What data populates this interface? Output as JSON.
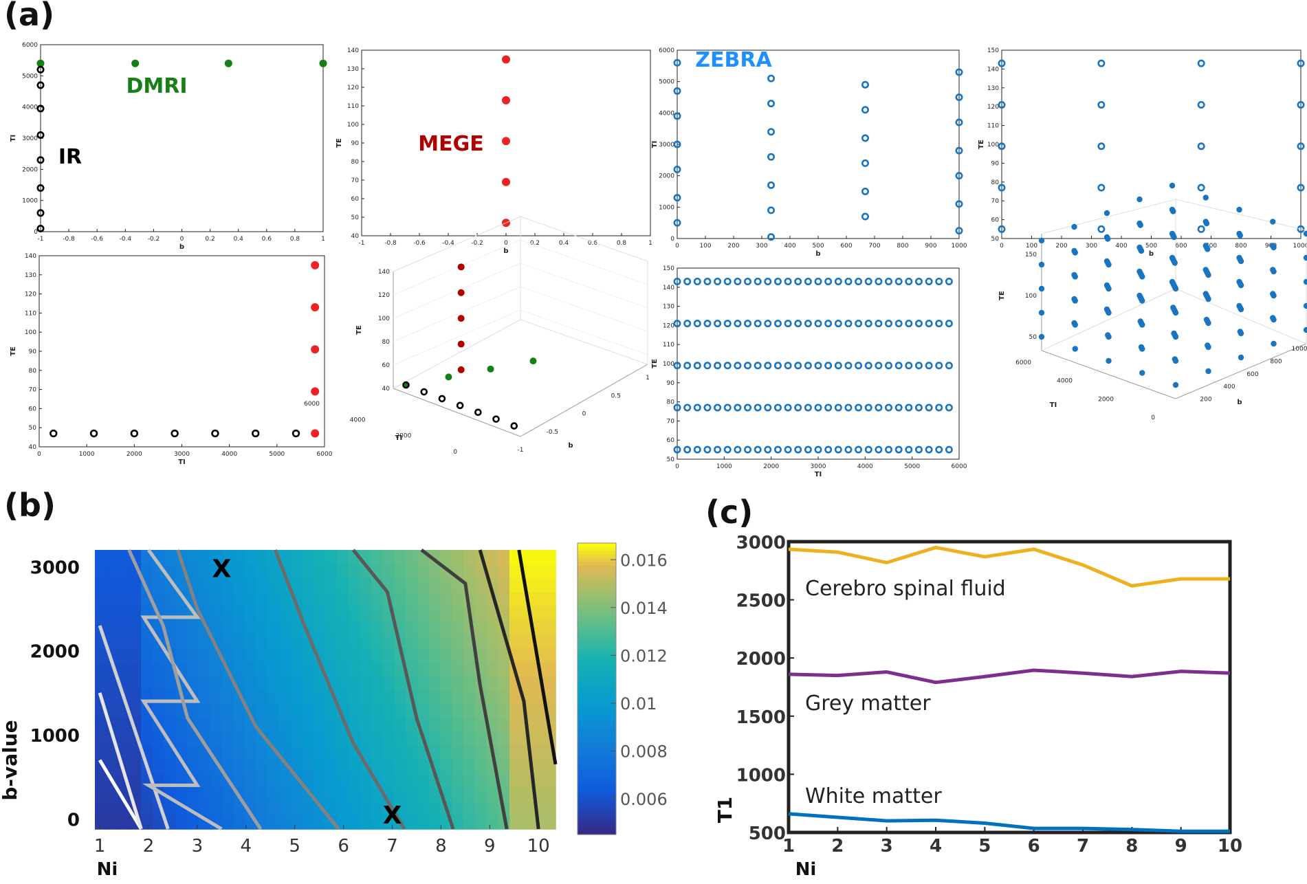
{
  "panel_labels": {
    "a": "(a)",
    "b": "(b)",
    "c": "(c)"
  },
  "colors": {
    "dmri": "#158015",
    "mege": "#ee2222",
    "mege_label": "#b00000",
    "zebra": "#1a75c0",
    "zebra_label": "#1e90ff",
    "ir": "#000000",
    "csf": "#edb120",
    "grey": "#7e2f8e",
    "white": "#0072bd"
  },
  "chart_data": [
    {
      "id": "a1",
      "type": "scatter",
      "xlabel": "b",
      "ylabel": "TI",
      "xlim": [
        -1,
        1
      ],
      "ylim": [
        0,
        6000
      ],
      "xticks": [
        "-1",
        "-0.8",
        "-0.6",
        "-0.4",
        "-0.2",
        "0",
        "0.2",
        "0.4",
        "0.6",
        "0.8",
        "1"
      ],
      "yticks": [
        "0",
        "1000",
        "2000",
        "3000",
        "4000",
        "5000",
        "6000"
      ],
      "annotations": [
        "DMRI",
        "IR"
      ],
      "series": [
        {
          "name": "DMRI",
          "marker": "filled",
          "color": "#158015",
          "points": [
            [
              -1,
              5400
            ],
            [
              -0.33,
              5400
            ],
            [
              0.33,
              5400
            ],
            [
              1,
              5400
            ]
          ]
        },
        {
          "name": "IR",
          "marker": "ring",
          "color": "#000000",
          "points": [
            [
              -1,
              100
            ],
            [
              -1,
              600
            ],
            [
              -1,
              1400
            ],
            [
              -1,
              2300
            ],
            [
              -1,
              3100
            ],
            [
              -1,
              3950
            ],
            [
              -1,
              4700
            ],
            [
              -1,
              5200
            ]
          ]
        }
      ]
    },
    {
      "id": "a2",
      "type": "scatter",
      "xlabel": "b",
      "ylabel": "TE",
      "xlim": [
        -1,
        1
      ],
      "ylim": [
        40,
        140
      ],
      "xticks": [
        "-1",
        "-0.8",
        "-0.6",
        "-0.4",
        "-0.2",
        "0",
        "0.2",
        "0.4",
        "0.6",
        "0.8",
        "1"
      ],
      "yticks": [
        "40",
        "50",
        "60",
        "70",
        "80",
        "90",
        "100",
        "110",
        "120",
        "130",
        "140"
      ],
      "annotations": [
        "MEGE"
      ],
      "series": [
        {
          "name": "MEGE",
          "marker": "filled",
          "color": "#ee2222",
          "points": [
            [
              0,
              47
            ],
            [
              0,
              69
            ],
            [
              0,
              91
            ],
            [
              0,
              113
            ],
            [
              0,
              135
            ]
          ]
        }
      ]
    },
    {
      "id": "a3",
      "type": "scatter",
      "xlabel": "b",
      "ylabel": "TI",
      "xlim": [
        0,
        1000
      ],
      "ylim": [
        0,
        6000
      ],
      "xticks": [
        "0",
        "100",
        "200",
        "300",
        "400",
        "500",
        "600",
        "700",
        "800",
        "900",
        "1000"
      ],
      "yticks": [
        "0",
        "1000",
        "2000",
        "3000",
        "4000",
        "5000",
        "6000"
      ],
      "annotations": [
        "ZEBRA"
      ],
      "series": [
        {
          "name": "ZEBRA",
          "marker": "ring",
          "color": "#1a75c0",
          "points": [
            [
              0,
              500
            ],
            [
              0,
              1300
            ],
            [
              0,
              2200
            ],
            [
              0,
              3000
            ],
            [
              0,
              3900
            ],
            [
              0,
              4700
            ],
            [
              0,
              5600
            ],
            [
              333,
              50
            ],
            [
              333,
              900
            ],
            [
              333,
              1700
            ],
            [
              333,
              2600
            ],
            [
              333,
              3400
            ],
            [
              333,
              4300
            ],
            [
              333,
              5100
            ],
            [
              667,
              700
            ],
            [
              667,
              1500
            ],
            [
              667,
              2400
            ],
            [
              667,
              3200
            ],
            [
              667,
              4100
            ],
            [
              667,
              4900
            ],
            [
              1000,
              250
            ],
            [
              1000,
              1100
            ],
            [
              1000,
              2000
            ],
            [
              1000,
              2800
            ],
            [
              1000,
              3700
            ],
            [
              1000,
              4500
            ],
            [
              1000,
              5300
            ]
          ]
        }
      ]
    },
    {
      "id": "a4",
      "type": "scatter",
      "xlabel": "b",
      "ylabel": "TE",
      "xlim": [
        0,
        1000
      ],
      "ylim": [
        50,
        150
      ],
      "xticks": [
        "0",
        "100",
        "200",
        "300",
        "400",
        "500",
        "600",
        "700",
        "800",
        "900",
        "1000"
      ],
      "yticks": [
        "50",
        "60",
        "70",
        "80",
        "90",
        "100",
        "110",
        "120",
        "130",
        "140",
        "150"
      ],
      "series": [
        {
          "marker": "ring",
          "color": "#1a75c0",
          "points": [
            [
              0,
              55
            ],
            [
              0,
              77
            ],
            [
              0,
              99
            ],
            [
              0,
              121
            ],
            [
              0,
              143
            ],
            [
              333,
              55
            ],
            [
              333,
              77
            ],
            [
              333,
              99
            ],
            [
              333,
              121
            ],
            [
              333,
              143
            ],
            [
              667,
              55
            ],
            [
              667,
              77
            ],
            [
              667,
              99
            ],
            [
              667,
              121
            ],
            [
              667,
              143
            ],
            [
              1000,
              55
            ],
            [
              1000,
              77
            ],
            [
              1000,
              99
            ],
            [
              1000,
              121
            ],
            [
              1000,
              143
            ]
          ]
        }
      ]
    },
    {
      "id": "a5",
      "type": "scatter",
      "xlabel": "TI",
      "ylabel": "TE",
      "xlim": [
        0,
        6000
      ],
      "ylim": [
        40,
        140
      ],
      "xticks": [
        "0",
        "1000",
        "2000",
        "3000",
        "4000",
        "5000",
        "6000"
      ],
      "yticks": [
        "40",
        "50",
        "60",
        "70",
        "80",
        "90",
        "100",
        "110",
        "120",
        "130",
        "140"
      ],
      "series": [
        {
          "marker": "ring",
          "color": "#000000",
          "points": [
            [
              300,
              47
            ],
            [
              1150,
              47
            ],
            [
              2000,
              47
            ],
            [
              2850,
              47
            ],
            [
              3700,
              47
            ],
            [
              4550,
              47
            ],
            [
              5400,
              47
            ]
          ]
        },
        {
          "marker": "filled",
          "color": "#ee2222",
          "points": [
            [
              5800,
              47
            ],
            [
              5800,
              69
            ],
            [
              5800,
              91
            ],
            [
              5800,
              113
            ],
            [
              5800,
              135
            ]
          ]
        }
      ]
    },
    {
      "id": "a6",
      "type": "scatter",
      "subtype": "3d",
      "xlabel": "b",
      "ylabel": "TI",
      "zlabel": "TE",
      "ticks": {
        "TE": [
          "40",
          "60",
          "80",
          "100",
          "120",
          "140"
        ],
        "TI": [
          "0",
          "2000",
          "4000",
          "6000"
        ],
        "b": [
          "-1",
          "-0.5",
          "0",
          "0.5",
          "1"
        ]
      },
      "series": [
        {
          "marker": "filled",
          "color": "#b00000",
          "points": [
            [
              0,
              5800,
              47
            ],
            [
              0,
              5800,
              69
            ],
            [
              0,
              5800,
              91
            ],
            [
              0,
              5800,
              113
            ],
            [
              0,
              5800,
              135
            ]
          ]
        },
        {
          "marker": "filled",
          "color": "#158015",
          "points": [
            [
              -1,
              5400,
              47
            ],
            [
              -0.33,
              5400,
              47
            ],
            [
              0.33,
              5400,
              47
            ],
            [
              1,
              5400,
              47
            ]
          ]
        },
        {
          "marker": "ring",
          "color": "#000000",
          "points": [
            [
              -1,
              300,
              47
            ],
            [
              -1,
              1150,
              47
            ],
            [
              -1,
              2000,
              47
            ],
            [
              -1,
              2850,
              47
            ],
            [
              -1,
              3700,
              47
            ],
            [
              -1,
              4550,
              47
            ],
            [
              -1,
              5400,
              47
            ]
          ]
        }
      ]
    },
    {
      "id": "a7",
      "type": "scatter",
      "xlabel": "TI",
      "ylabel": "TE",
      "xlim": [
        0,
        6000
      ],
      "ylim": [
        50,
        150
      ],
      "xticks": [
        "0",
        "1000",
        "2000",
        "3000",
        "4000",
        "5000",
        "6000"
      ],
      "yticks": [
        "50",
        "60",
        "70",
        "80",
        "90",
        "100",
        "110",
        "120",
        "130",
        "140",
        "150"
      ],
      "series": [
        {
          "marker": "ring",
          "color": "#1a75c0",
          "rows_te": [
            55,
            77,
            99,
            121,
            143
          ],
          "ti_start": 0,
          "ti_step": 214.3,
          "count_per_row": 28
        }
      ]
    },
    {
      "id": "a8",
      "type": "scatter",
      "subtype": "3d",
      "xlabel": "b",
      "ylabel": "TI",
      "zlabel": "TE",
      "ticks": {
        "TE": [
          "50",
          "100",
          "150"
        ],
        "TI": [
          "0",
          "2000",
          "4000",
          "6000"
        ],
        "b": [
          "200",
          "400",
          "600",
          "800",
          "1000"
        ]
      },
      "series": [
        {
          "marker": "filled",
          "color": "#1a75c0",
          "grid": [
            5,
            5,
            5
          ]
        }
      ]
    },
    {
      "id": "b",
      "type": "heatmap",
      "xlabel": "Ni",
      "ylabel": "b-value",
      "xticks": [
        "1",
        "2",
        "3",
        "4",
        "5",
        "6",
        "7",
        "8",
        "9",
        "10"
      ],
      "yticks": [
        "0",
        "1000",
        "2000",
        "3000"
      ],
      "xlim": [
        0.9,
        10.35
      ],
      "ylim": [
        -120,
        3200
      ],
      "colorbar_ticks": [
        "0.006",
        "0.008",
        "0.01",
        "0.012",
        "0.014",
        "0.016"
      ],
      "colorbar_range": [
        0.0045,
        0.0167
      ],
      "markers": [
        {
          "text": "X",
          "x": 3.5,
          "y": 2990
        },
        {
          "text": "X",
          "x": 7.0,
          "y": 60
        }
      ],
      "contours": [
        {
          "shade": "#ffffff",
          "points": [
            [
              1.85,
              -120
            ],
            [
              1.0,
              700
            ]
          ]
        },
        {
          "shade": "#e6e6e6",
          "points": [
            [
              1.85,
              -120
            ],
            [
              1.0,
              1500
            ]
          ]
        },
        {
          "shade": "#d0d0d0",
          "points": [
            [
              2.4,
              -120
            ],
            [
              1.0,
              2300
            ]
          ]
        },
        {
          "shade": "#bdbdbd",
          "points": [
            [
              3.5,
              -120
            ],
            [
              2.0,
              400
            ],
            [
              3.0,
              400
            ],
            [
              1.9,
              1400
            ],
            [
              3.0,
              1400
            ],
            [
              1.9,
              2400
            ],
            [
              3.0,
              2400
            ],
            [
              2.0,
              3200
            ]
          ]
        },
        {
          "shade": "#9e9e9e",
          "points": [
            [
              4.3,
              -120
            ],
            [
              2.8,
              1200
            ],
            [
              2.3,
              2300
            ],
            [
              1.6,
              3200
            ]
          ]
        },
        {
          "shade": "#828282",
          "points": [
            [
              5.9,
              -120
            ],
            [
              4.2,
              1100
            ],
            [
              3.0,
              2500
            ],
            [
              2.6,
              3200
            ]
          ]
        },
        {
          "shade": "#6b6b6b",
          "points": [
            [
              7.25,
              -120
            ],
            [
              6.2,
              900
            ],
            [
              5.2,
              2300
            ],
            [
              4.6,
              3200
            ]
          ]
        },
        {
          "shade": "#585858",
          "points": [
            [
              8.25,
              -120
            ],
            [
              7.5,
              1200
            ],
            [
              6.9,
              2700
            ],
            [
              6.2,
              3200
            ]
          ]
        },
        {
          "shade": "#404040",
          "points": [
            [
              9.35,
              -120
            ],
            [
              8.8,
              1600
            ],
            [
              8.5,
              2800
            ],
            [
              7.6,
              3200
            ]
          ]
        },
        {
          "shade": "#262626",
          "points": [
            [
              10.0,
              -120
            ],
            [
              9.7,
              1400
            ],
            [
              8.8,
              3200
            ]
          ]
        },
        {
          "shade": "#111111",
          "points": [
            [
              10.35,
              650
            ],
            [
              9.6,
              3200
            ]
          ]
        }
      ]
    },
    {
      "id": "c",
      "type": "line",
      "xlabel": "Ni",
      "ylabel": "T1",
      "xlim": [
        1,
        10
      ],
      "ylim": [
        500,
        3000
      ],
      "xticks": [
        "1",
        "2",
        "3",
        "4",
        "5",
        "6",
        "7",
        "8",
        "9",
        "10"
      ],
      "yticks": [
        "500",
        "1000",
        "1500",
        "2000",
        "2500",
        "3000"
      ],
      "x": [
        1,
        2,
        3,
        4,
        5,
        6,
        7,
        8,
        9,
        10
      ],
      "series": [
        {
          "name": "Cerebro spinal fluid",
          "color": "#edb120",
          "values": [
            2935,
            2910,
            2820,
            2950,
            2870,
            2935,
            2800,
            2620,
            2680,
            2680
          ]
        },
        {
          "name": "Grey matter",
          "color": "#7e2f8e",
          "values": [
            1860,
            1850,
            1880,
            1790,
            1840,
            1895,
            1870,
            1840,
            1885,
            1870
          ]
        },
        {
          "name": "White matter",
          "color": "#0072bd",
          "values": [
            660,
            630,
            600,
            605,
            580,
            535,
            535,
            525,
            510,
            510
          ]
        }
      ]
    }
  ]
}
